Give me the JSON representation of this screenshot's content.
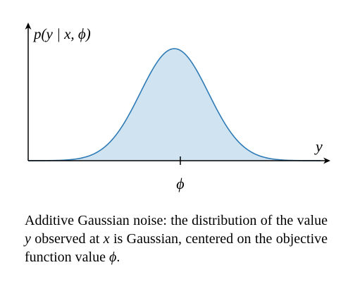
{
  "figure": {
    "y_axis_label": "p(y | x, ϕ)",
    "x_axis_label": "y",
    "center_tick_label": "ϕ",
    "curve_color": "#2f7bb6",
    "fill_color": "#cfe3f0"
  },
  "chart_data": {
    "type": "area",
    "distribution": "gaussian",
    "series": [
      {
        "name": "",
        "mean": 0,
        "std": 1
      }
    ],
    "x_range": [
      -4.3,
      4.3
    ],
    "ylabel": "p(y | x, ϕ)",
    "xlabel": "y",
    "x_tick_labels": [
      "ϕ"
    ],
    "grid": false
  },
  "caption": {
    "part1": "Additive Gaussian noise: the distribution of the value ",
    "var_y": "y",
    "part2": " observed at ",
    "var_x": "x",
    "part3": " is Gaussian, centered on the objective function value ",
    "var_phi": "ϕ",
    "part4": "."
  }
}
